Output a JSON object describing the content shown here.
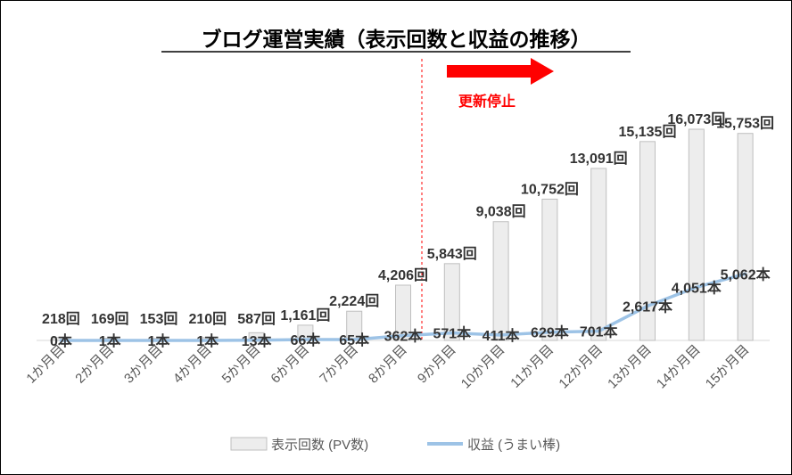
{
  "chart_data": {
    "type": "bar",
    "title": "ブログ運営実績（表示回数と収益の推移）",
    "categories": [
      "1か月目",
      "2か月目",
      "3か月目",
      "4か月目",
      "5か月目",
      "6か月目",
      "7か月目",
      "8か月目",
      "9か月目",
      "10か月目",
      "11か月目",
      "12か月目",
      "13か月目",
      "14か月目",
      "15か月目"
    ],
    "series": [
      {
        "name": "表示回数 (PV数)",
        "type": "bar",
        "values": [
          218,
          169,
          153,
          210,
          587,
          1161,
          2224,
          4206,
          5843,
          9038,
          10752,
          13091,
          15135,
          16073,
          15753
        ],
        "labels": [
          "218回",
          "169回",
          "153回",
          "210回",
          "587回",
          "1,161回",
          "2,224回",
          "4,206回",
          "5,843回",
          "9,038回",
          "10,752回",
          "13,091回",
          "15,135回",
          "16,073回",
          "15,753回"
        ],
        "color": "#ededed"
      },
      {
        "name": "収益 (うまい棒)",
        "type": "line",
        "values": [
          0,
          1,
          1,
          1,
          13,
          66,
          65,
          362,
          571,
          411,
          629,
          701,
          2617,
          4051,
          5062
        ],
        "labels": [
          "0本",
          "1本",
          "1本",
          "1本",
          "13本",
          "66本",
          "65本",
          "362本",
          "571本",
          "411本",
          "629本",
          "701本",
          "2,617本",
          "4,051本",
          "5,062本"
        ],
        "color": "#9dc3e6"
      }
    ],
    "annotation": {
      "text": "更新停止",
      "color": "#ff0000"
    },
    "grid": false,
    "legend": "bottom"
  }
}
